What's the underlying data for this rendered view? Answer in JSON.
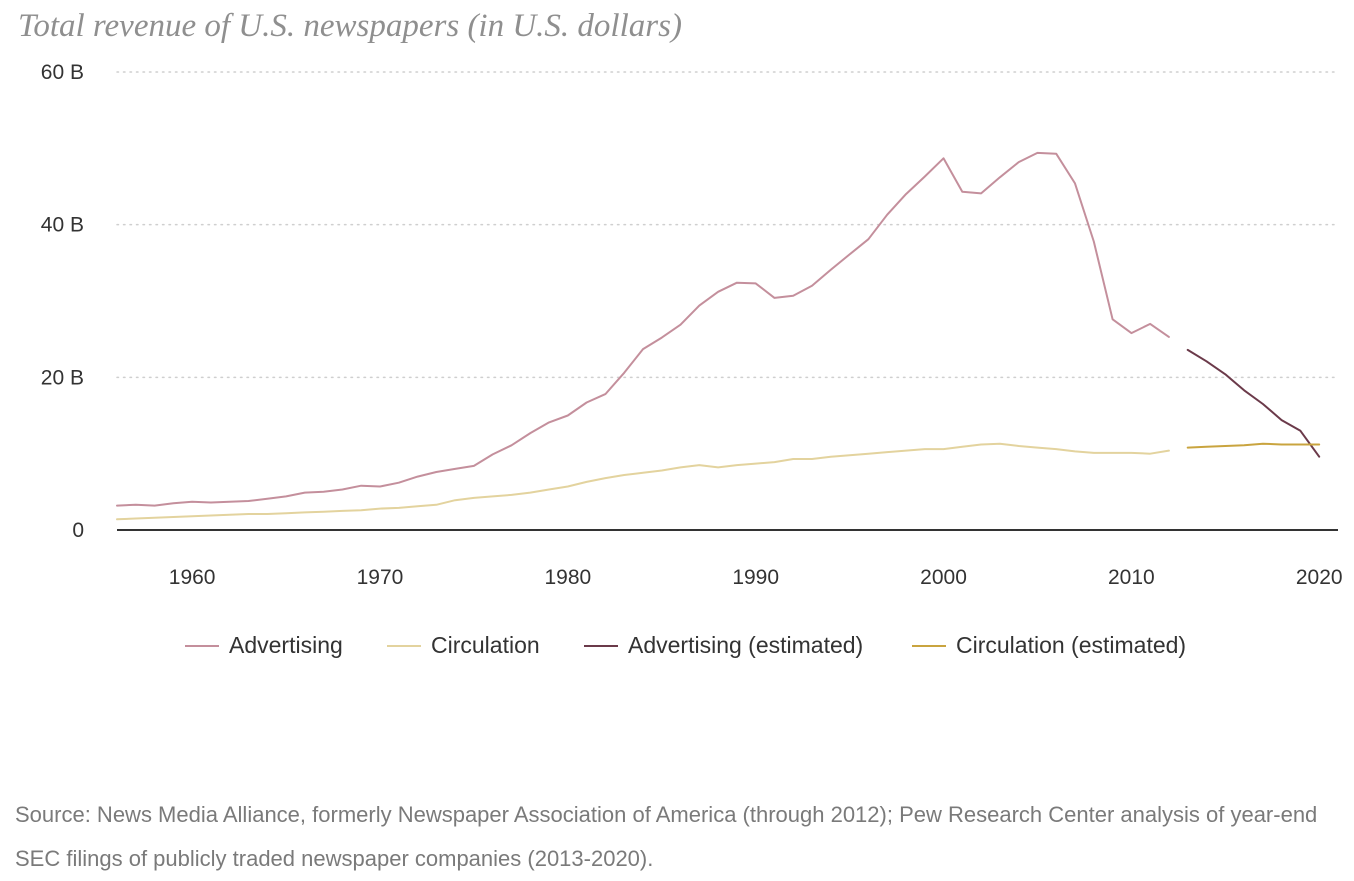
{
  "chart_data": {
    "type": "line",
    "title": "Total revenue of U.S. newspapers (in U.S. dollars)",
    "xlabel": "",
    "ylabel": "",
    "xlim": [
      1956,
      2021
    ],
    "ylim": [
      0,
      60
    ],
    "y_ticks": [
      {
        "value": 0,
        "label": "0"
      },
      {
        "value": 20,
        "label": "20 B"
      },
      {
        "value": 40,
        "label": "40 B"
      },
      {
        "value": 60,
        "label": "60 B"
      }
    ],
    "x_ticks": [
      {
        "value": 1960,
        "label": "1960"
      },
      {
        "value": 1970,
        "label": "1970"
      },
      {
        "value": 1980,
        "label": "1980"
      },
      {
        "value": 1990,
        "label": "1990"
      },
      {
        "value": 2000,
        "label": "2000"
      },
      {
        "value": 2010,
        "label": "2010"
      },
      {
        "value": 2020,
        "label": "2020"
      }
    ],
    "grid": "horizontal-dotted",
    "legend_position": "bottom",
    "series": [
      {
        "name": "Advertising",
        "color": "#c48f9c",
        "points": [
          [
            1956,
            3.2
          ],
          [
            1957,
            3.3
          ],
          [
            1958,
            3.2
          ],
          [
            1959,
            3.5
          ],
          [
            1960,
            3.7
          ],
          [
            1961,
            3.6
          ],
          [
            1962,
            3.7
          ],
          [
            1963,
            3.8
          ],
          [
            1964,
            4.1
          ],
          [
            1965,
            4.4
          ],
          [
            1966,
            4.9
          ],
          [
            1967,
            5.0
          ],
          [
            1968,
            5.3
          ],
          [
            1969,
            5.8
          ],
          [
            1970,
            5.7
          ],
          [
            1971,
            6.2
          ],
          [
            1972,
            7.0
          ],
          [
            1973,
            7.6
          ],
          [
            1974,
            8.0
          ],
          [
            1975,
            8.4
          ],
          [
            1976,
            9.9
          ],
          [
            1977,
            11.1
          ],
          [
            1978,
            12.7
          ],
          [
            1979,
            14.1
          ],
          [
            1980,
            15.0
          ],
          [
            1981,
            16.7
          ],
          [
            1982,
            17.8
          ],
          [
            1983,
            20.6
          ],
          [
            1984,
            23.7
          ],
          [
            1985,
            25.2
          ],
          [
            1986,
            26.9
          ],
          [
            1987,
            29.4
          ],
          [
            1988,
            31.2
          ],
          [
            1989,
            32.4
          ],
          [
            1990,
            32.3
          ],
          [
            1991,
            30.4
          ],
          [
            1992,
            30.7
          ],
          [
            1993,
            32.0
          ],
          [
            1994,
            34.1
          ],
          [
            1995,
            36.1
          ],
          [
            1996,
            38.1
          ],
          [
            1997,
            41.3
          ],
          [
            1998,
            44.0
          ],
          [
            1999,
            46.3
          ],
          [
            2000,
            48.7
          ],
          [
            2001,
            44.3
          ],
          [
            2002,
            44.1
          ],
          [
            2003,
            46.2
          ],
          [
            2004,
            48.2
          ],
          [
            2005,
            49.4
          ],
          [
            2006,
            49.3
          ],
          [
            2007,
            45.4
          ],
          [
            2008,
            37.8
          ],
          [
            2009,
            27.6
          ],
          [
            2010,
            25.8
          ],
          [
            2011,
            27.0
          ],
          [
            2012,
            25.3
          ]
        ]
      },
      {
        "name": "Circulation",
        "color": "#e3d39e",
        "points": [
          [
            1956,
            1.4
          ],
          [
            1957,
            1.5
          ],
          [
            1958,
            1.6
          ],
          [
            1959,
            1.7
          ],
          [
            1960,
            1.8
          ],
          [
            1961,
            1.9
          ],
          [
            1962,
            2.0
          ],
          [
            1963,
            2.1
          ],
          [
            1964,
            2.1
          ],
          [
            1965,
            2.2
          ],
          [
            1966,
            2.3
          ],
          [
            1967,
            2.4
          ],
          [
            1968,
            2.5
          ],
          [
            1969,
            2.6
          ],
          [
            1970,
            2.8
          ],
          [
            1971,
            2.9
          ],
          [
            1972,
            3.1
          ],
          [
            1973,
            3.3
          ],
          [
            1974,
            3.9
          ],
          [
            1975,
            4.2
          ],
          [
            1976,
            4.4
          ],
          [
            1977,
            4.6
          ],
          [
            1978,
            4.9
          ],
          [
            1979,
            5.3
          ],
          [
            1980,
            5.7
          ],
          [
            1981,
            6.3
          ],
          [
            1982,
            6.8
          ],
          [
            1983,
            7.2
          ],
          [
            1984,
            7.5
          ],
          [
            1985,
            7.8
          ],
          [
            1986,
            8.2
          ],
          [
            1987,
            8.5
          ],
          [
            1988,
            8.2
          ],
          [
            1989,
            8.5
          ],
          [
            1990,
            8.7
          ],
          [
            1991,
            8.9
          ],
          [
            1992,
            9.3
          ],
          [
            1993,
            9.3
          ],
          [
            1994,
            9.6
          ],
          [
            1995,
            9.8
          ],
          [
            1996,
            10.0
          ],
          [
            1997,
            10.2
          ],
          [
            1998,
            10.4
          ],
          [
            1999,
            10.6
          ],
          [
            2000,
            10.6
          ],
          [
            2001,
            10.9
          ],
          [
            2002,
            11.2
          ],
          [
            2003,
            11.3
          ],
          [
            2004,
            11.0
          ],
          [
            2005,
            10.8
          ],
          [
            2006,
            10.6
          ],
          [
            2007,
            10.3
          ],
          [
            2008,
            10.1
          ],
          [
            2009,
            10.1
          ],
          [
            2010,
            10.1
          ],
          [
            2011,
            10.0
          ],
          [
            2012,
            10.4
          ]
        ]
      },
      {
        "name": "Advertising (estimated)",
        "color": "#6b3a4a",
        "points": [
          [
            2013,
            23.6
          ],
          [
            2014,
            22.1
          ],
          [
            2015,
            20.4
          ],
          [
            2016,
            18.3
          ],
          [
            2017,
            16.5
          ],
          [
            2018,
            14.4
          ],
          [
            2019,
            13.0
          ],
          [
            2020,
            9.6
          ]
        ]
      },
      {
        "name": "Circulation (estimated)",
        "color": "#c9a43f",
        "points": [
          [
            2013,
            10.8
          ],
          [
            2014,
            10.9
          ],
          [
            2015,
            11.0
          ],
          [
            2016,
            11.1
          ],
          [
            2017,
            11.3
          ],
          [
            2018,
            11.2
          ],
          [
            2019,
            11.2
          ],
          [
            2020,
            11.2
          ]
        ]
      }
    ]
  },
  "source_note": "Source: News Media Alliance, formerly Newspaper Association of America (through 2012); Pew Research Center analysis of year-end SEC filings of publicly traded newspaper companies (2013-2020)."
}
